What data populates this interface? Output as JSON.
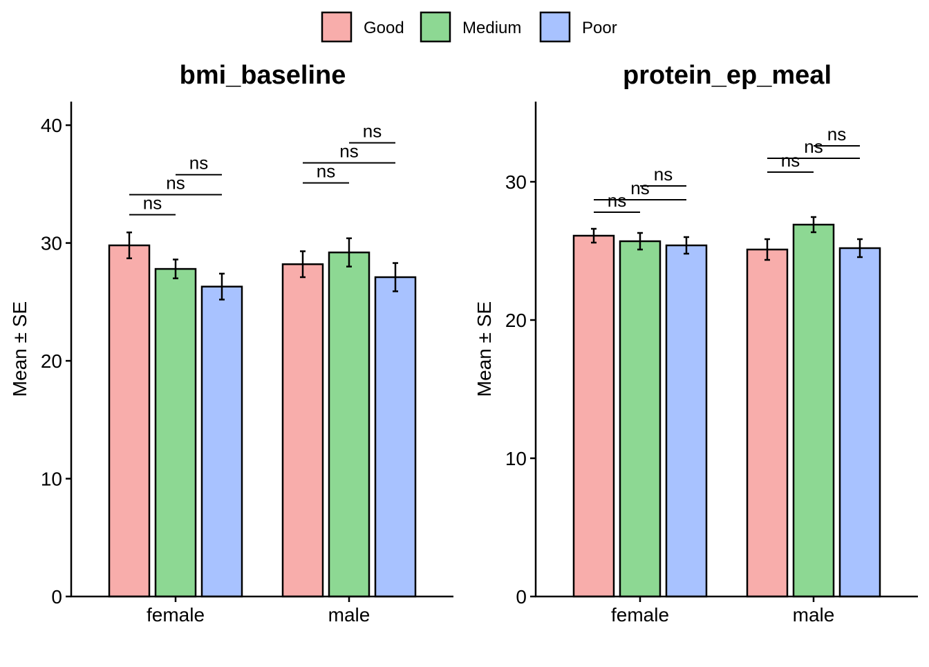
{
  "legend": {
    "items": [
      {
        "label": "Good",
        "color": "#F8ADAB"
      },
      {
        "label": "Medium",
        "color": "#8DD893"
      },
      {
        "label": "Poor",
        "color": "#A8C2FF"
      }
    ]
  },
  "chart_data": [
    {
      "type": "bar",
      "title": "bmi_baseline",
      "ylabel": "Mean ± SE",
      "xlabel": "",
      "categories": [
        "female",
        "male"
      ],
      "ylim": [
        0,
        42
      ],
      "yticks": [
        0,
        10,
        20,
        30,
        40
      ],
      "series": [
        {
          "name": "Good",
          "values": [
            29.8,
            28.2
          ],
          "se": [
            1.1,
            1.1
          ]
        },
        {
          "name": "Medium",
          "values": [
            27.8,
            29.2
          ],
          "se": [
            0.8,
            1.2
          ]
        },
        {
          "name": "Poor",
          "values": [
            26.3,
            27.1
          ],
          "se": [
            1.1,
            1.2
          ]
        }
      ],
      "comparisons": [
        {
          "category": "female",
          "from": "Good",
          "to": "Medium",
          "y": 32.4,
          "label": "ns"
        },
        {
          "category": "female",
          "from": "Good",
          "to": "Poor",
          "y": 34.1,
          "label": "ns"
        },
        {
          "category": "female",
          "from": "Medium",
          "to": "Poor",
          "y": 35.8,
          "label": "ns"
        },
        {
          "category": "male",
          "from": "Good",
          "to": "Medium",
          "y": 35.1,
          "label": "ns"
        },
        {
          "category": "male",
          "from": "Good",
          "to": "Poor",
          "y": 36.8,
          "label": "ns"
        },
        {
          "category": "male",
          "from": "Medium",
          "to": "Poor",
          "y": 38.5,
          "label": "ns"
        }
      ],
      "grid": false
    },
    {
      "type": "bar",
      "title": "protein_ep_meal",
      "ylabel": "Mean ± SE",
      "xlabel": "",
      "categories": [
        "female",
        "male"
      ],
      "ylim": [
        0,
        35.8
      ],
      "yticks": [
        0,
        10,
        20,
        30
      ],
      "series": [
        {
          "name": "Good",
          "values": [
            26.1,
            25.1
          ],
          "se": [
            0.5,
            0.75
          ]
        },
        {
          "name": "Medium",
          "values": [
            25.7,
            26.9
          ],
          "se": [
            0.6,
            0.55
          ]
        },
        {
          "name": "Poor",
          "values": [
            25.4,
            25.2
          ],
          "se": [
            0.6,
            0.65
          ]
        }
      ],
      "comparisons": [
        {
          "category": "female",
          "from": "Good",
          "to": "Medium",
          "y": 27.8,
          "label": "ns"
        },
        {
          "category": "female",
          "from": "Good",
          "to": "Poor",
          "y": 28.7,
          "label": "ns"
        },
        {
          "category": "female",
          "from": "Medium",
          "to": "Poor",
          "y": 29.7,
          "label": "ns"
        },
        {
          "category": "male",
          "from": "Good",
          "to": "Medium",
          "y": 30.7,
          "label": "ns"
        },
        {
          "category": "male",
          "from": "Good",
          "to": "Poor",
          "y": 31.7,
          "label": "ns"
        },
        {
          "category": "male",
          "from": "Medium",
          "to": "Poor",
          "y": 32.6,
          "label": "ns"
        }
      ],
      "grid": false
    }
  ]
}
